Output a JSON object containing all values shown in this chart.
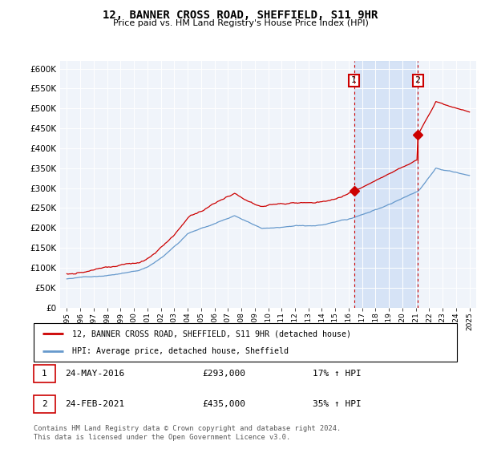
{
  "title": "12, BANNER CROSS ROAD, SHEFFIELD, S11 9HR",
  "subtitle": "Price paid vs. HM Land Registry's House Price Index (HPI)",
  "red_label": "12, BANNER CROSS ROAD, SHEFFIELD, S11 9HR (detached house)",
  "blue_label": "HPI: Average price, detached house, Sheffield",
  "annotation1": {
    "num": "1",
    "date": "24-MAY-2016",
    "price": "£293,000",
    "hpi": "17% ↑ HPI",
    "year": 2016.4,
    "value": 293000
  },
  "annotation2": {
    "num": "2",
    "date": "24-FEB-2021",
    "price": "£435,000",
    "hpi": "35% ↑ HPI",
    "year": 2021.15,
    "value": 435000
  },
  "footer1": "Contains HM Land Registry data © Crown copyright and database right 2024.",
  "footer2": "This data is licensed under the Open Government Licence v3.0.",
  "ylim": [
    0,
    620000
  ],
  "yticks": [
    0,
    50000,
    100000,
    150000,
    200000,
    250000,
    300000,
    350000,
    400000,
    450000,
    500000,
    550000,
    600000
  ],
  "ytick_labels": [
    "£0",
    "£50K",
    "£100K",
    "£150K",
    "£200K",
    "£250K",
    "£300K",
    "£350K",
    "£400K",
    "£450K",
    "£500K",
    "£550K",
    "£600K"
  ],
  "xlim": [
    1994.5,
    2025.5
  ],
  "xticks": [
    1995,
    1996,
    1997,
    1998,
    1999,
    2000,
    2001,
    2002,
    2003,
    2004,
    2005,
    2006,
    2007,
    2008,
    2009,
    2010,
    2011,
    2012,
    2013,
    2014,
    2015,
    2016,
    2017,
    2018,
    2019,
    2020,
    2021,
    2022,
    2023,
    2024,
    2025
  ],
  "red_color": "#cc0000",
  "blue_color": "#6699cc",
  "vline_color": "#cc0000",
  "bg_color": "#f0f4fa",
  "fill_color": "#ccddf5"
}
